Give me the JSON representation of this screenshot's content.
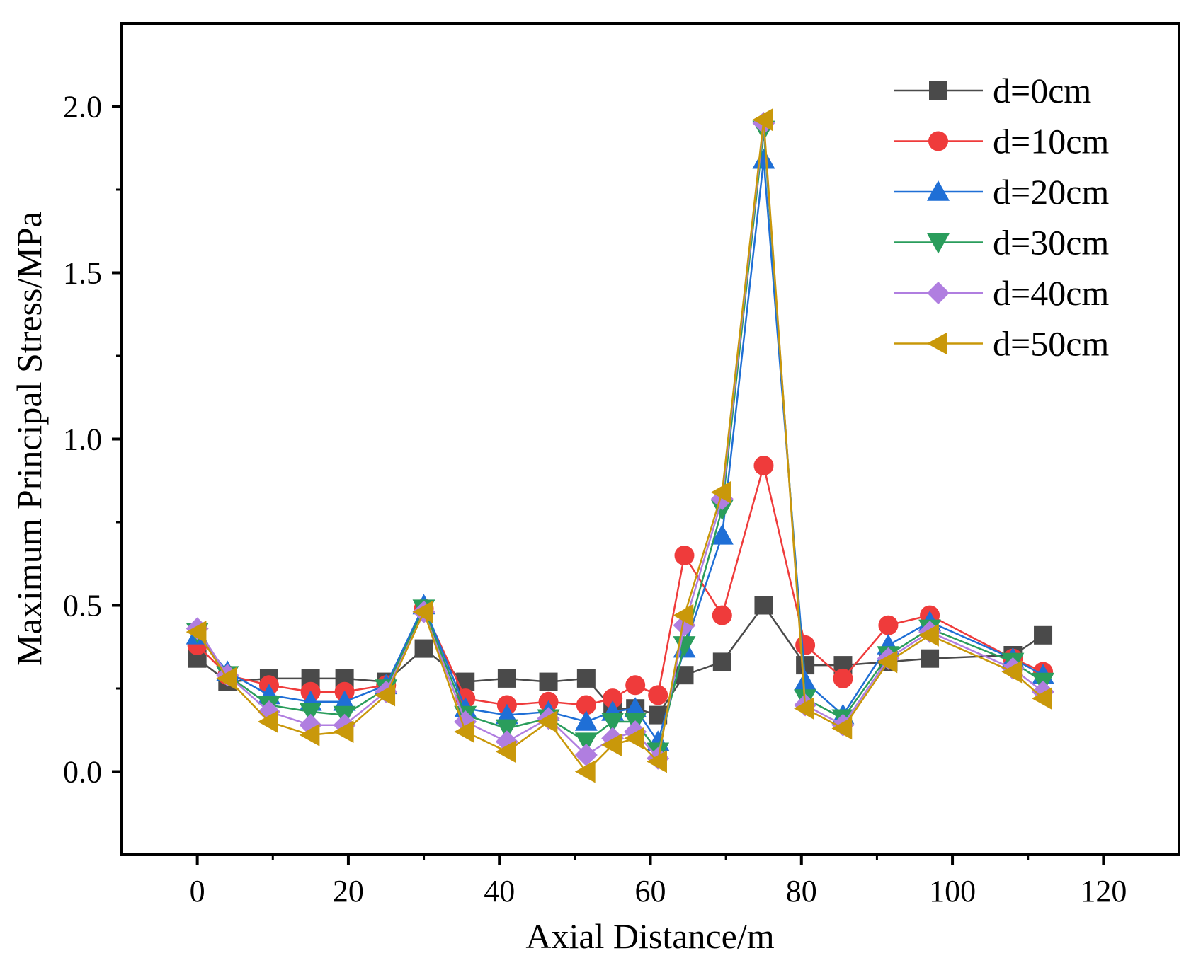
{
  "chart_data": {
    "type": "line",
    "xlabel": "Axial Distance/m",
    "ylabel": "Maximum Principal Stress/MPa",
    "xlim": [
      -10,
      130
    ],
    "ylim": [
      -0.25,
      2.25
    ],
    "x_ticks": [
      0,
      20,
      40,
      60,
      80,
      100,
      120
    ],
    "x_tick_labels": [
      "0",
      "20",
      "40",
      "60",
      "80",
      "100",
      "120"
    ],
    "y_ticks": [
      0.0,
      0.5,
      1.0,
      1.5,
      2.0
    ],
    "y_tick_labels": [
      "0.0",
      "0.5",
      "1.0",
      "1.5",
      "2.0"
    ],
    "grid": false,
    "legend_position": "top-right",
    "x": [
      0,
      4,
      9.5,
      15,
      19.5,
      25,
      30,
      35.5,
      41,
      46.5,
      51.5,
      55,
      58,
      61,
      64.5,
      69.5,
      75,
      80.5,
      85.5,
      91.5,
      97,
      108,
      112
    ],
    "series": [
      {
        "name": "d=0cm",
        "color": "#4a4a4a",
        "marker": "square",
        "values": [
          0.34,
          0.27,
          0.28,
          0.28,
          0.28,
          0.27,
          0.37,
          0.27,
          0.28,
          0.27,
          0.28,
          0.19,
          0.19,
          0.17,
          0.29,
          0.33,
          0.5,
          0.32,
          0.32,
          0.33,
          0.34,
          0.35,
          0.41
        ]
      },
      {
        "name": "d=10cm",
        "color": "#ef3b3b",
        "marker": "circle",
        "values": [
          0.38,
          0.29,
          0.26,
          0.24,
          0.24,
          0.26,
          0.49,
          0.22,
          0.2,
          0.21,
          0.2,
          0.22,
          0.26,
          0.23,
          0.65,
          0.47,
          0.92,
          0.38,
          0.28,
          0.44,
          0.47,
          0.34,
          0.3
        ]
      },
      {
        "name": "d=20cm",
        "color": "#1f6fd6",
        "marker": "triangle-up",
        "values": [
          0.41,
          0.3,
          0.23,
          0.21,
          0.21,
          0.26,
          0.5,
          0.19,
          0.17,
          0.18,
          0.15,
          0.18,
          0.19,
          0.09,
          0.37,
          0.71,
          1.84,
          0.27,
          0.17,
          0.38,
          0.45,
          0.34,
          0.29
        ]
      },
      {
        "name": "d=30cm",
        "color": "#2a9d5c",
        "marker": "triangle-down",
        "values": [
          0.42,
          0.29,
          0.2,
          0.18,
          0.17,
          0.25,
          0.49,
          0.17,
          0.13,
          0.16,
          0.09,
          0.15,
          0.15,
          0.06,
          0.38,
          0.79,
          1.93,
          0.22,
          0.16,
          0.35,
          0.43,
          0.33,
          0.27
        ]
      },
      {
        "name": "d=40cm",
        "color": "#b07ee0",
        "marker": "diamond",
        "values": [
          0.43,
          0.29,
          0.18,
          0.14,
          0.14,
          0.24,
          0.48,
          0.15,
          0.09,
          0.16,
          0.05,
          0.1,
          0.12,
          0.04,
          0.44,
          0.82,
          1.95,
          0.2,
          0.14,
          0.34,
          0.42,
          0.31,
          0.24
        ]
      },
      {
        "name": "d=50cm",
        "color": "#c9980a",
        "marker": "triangle-left",
        "values": [
          0.42,
          0.28,
          0.15,
          0.11,
          0.12,
          0.23,
          0.48,
          0.12,
          0.06,
          0.15,
          0.0,
          0.08,
          0.1,
          0.03,
          0.47,
          0.84,
          1.96,
          0.19,
          0.13,
          0.33,
          0.41,
          0.3,
          0.22
        ]
      }
    ]
  }
}
